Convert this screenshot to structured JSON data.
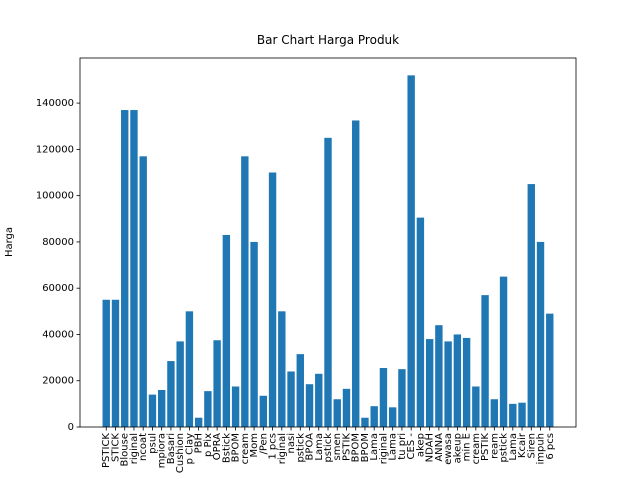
{
  "chart_data": {
    "type": "bar",
    "title": "Bar Chart Harga Produk",
    "y_label": "Harga",
    "categories": [
      "PSTICK",
      "STICK",
      "Blouse",
      "riginal",
      "ncoat",
      "psul",
      "mpiora",
      "Basari",
      "Cushion",
      "p Clay",
      "PBH",
      "p Pix",
      "OPRA",
      "Bstick",
      "BPOM",
      "cream",
      "Mom",
      "/Pen",
      "1 pcs",
      "riginal",
      "nasi",
      "pstick",
      "BPOA",
      "Lama",
      "pstick",
      "smen",
      "PSTIK",
      "BPOM",
      "BPOM",
      "Lama",
      "riginal",
      "Lama",
      "tu pri",
      "CES -",
      "akep",
      "NDAH",
      "ANNA",
      "ewasa",
      "akeup",
      "min E",
      "cream",
      "PSTIK",
      "ream",
      "pstick",
      "Lama",
      "Kcair",
      "Siren",
      "impuh",
      "6 pcs"
    ],
    "values": [
      55000,
      55000,
      137000,
      137000,
      117000,
      14000,
      16000,
      28500,
      37000,
      50000,
      4000,
      15500,
      37500,
      83000,
      17500,
      117000,
      80000,
      13500,
      110000,
      50000,
      24000,
      31500,
      18500,
      23000,
      125000,
      12000,
      16500,
      132500,
      4000,
      9000,
      25500,
      8500,
      25000,
      152000,
      90500,
      38000,
      44000,
      37000,
      40000,
      38500,
      17500,
      57000,
      12000,
      65000,
      10000,
      10500,
      105000,
      80000,
      49000
    ],
    "color": "#1f77b4",
    "ylim": [
      0,
      159500
    ],
    "yticks": [
      0,
      20000,
      40000,
      60000,
      80000,
      100000,
      120000,
      140000
    ]
  }
}
